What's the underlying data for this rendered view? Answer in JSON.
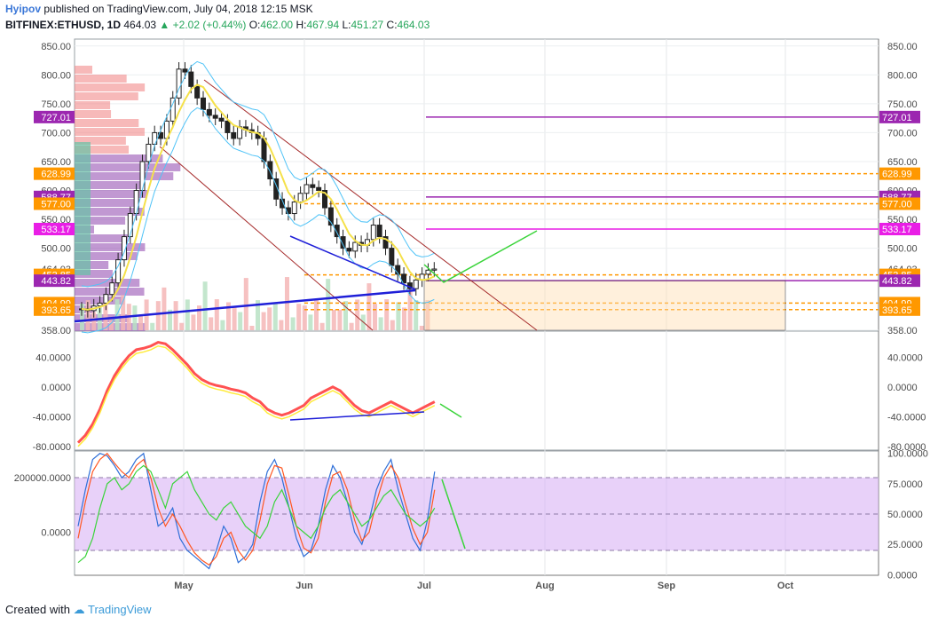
{
  "header": {
    "author": "Hyipov",
    "published": "published on TradingView.com, July 04, 2018 12:15 MSK",
    "symbol": "BITFINEX:ETHUSD, 1D",
    "last": "464.03",
    "change": "+2.02 (+0.44%)",
    "o_label": "O:",
    "o": "462.00",
    "h_label": "H:",
    "h": "467.94",
    "l_label": "L:",
    "l": "451.27",
    "c_label": "C:",
    "c": "464.03"
  },
  "footer": {
    "created_with": "Created with",
    "brand": "TradingView"
  },
  "colors": {
    "up": "#26a65b",
    "orange": "#ff9800",
    "purple": "#9c27b0",
    "magenta": "#e91ee6",
    "navy": "#1f1fd8",
    "darkred": "#a52a2a"
  },
  "chart_data": [
    {
      "type": "line",
      "title": "BITFINEX:ETHUSD, 1D",
      "ylim": [
        358,
        862
      ],
      "y_ticks": [
        "850.00",
        "800.00",
        "750.00",
        "700.00",
        "650.00",
        "600.00",
        "550.00",
        "500.00",
        "464.03",
        "443.82",
        "404.99",
        "393.65",
        "358.00"
      ],
      "x_ticks": [
        "May",
        "Jun",
        "Jul",
        "Aug",
        "Sep",
        "Oct"
      ],
      "price_labels": [
        {
          "value": 727.01,
          "text": "727.01",
          "color": "#9c27b0"
        },
        {
          "value": 628.99,
          "text": "628.99",
          "color": "#ff9800"
        },
        {
          "value": 588.77,
          "text": "588.77",
          "color": "#9c27b0"
        },
        {
          "value": 577.0,
          "text": "577.00",
          "color": "#ff9800"
        },
        {
          "value": 533.17,
          "text": "533.17",
          "color": "#e91ee6"
        },
        {
          "value": 453.85,
          "text": "453.85",
          "color": "#ff9800"
        },
        {
          "value": 443.82,
          "text": "443.82",
          "color": "#9c27b0"
        },
        {
          "value": 404.99,
          "text": "404.99",
          "color": "#ff9800"
        },
        {
          "value": 393.65,
          "text": "393.65",
          "color": "#ff9800"
        }
      ],
      "series": [
        {
          "values": [
            395,
            392,
            400,
            405,
            420,
            440,
            480,
            520,
            560,
            600,
            650,
            680,
            700,
            690,
            720,
            760,
            810,
            805,
            780,
            760,
            740,
            730,
            725,
            720,
            700,
            690,
            710,
            705,
            700,
            690,
            650,
            620,
            585,
            570,
            560,
            580,
            595,
            610,
            605,
            600,
            570,
            540,
            520,
            500,
            495,
            510,
            505,
            515,
            540,
            520,
            500,
            470,
            455,
            440,
            430,
            445,
            455,
            462,
            464
          ]
        }
      ]
    },
    {
      "type": "line",
      "ylim": [
        -85,
        75
      ],
      "y_ticks": [
        "40.0000",
        "0.0000",
        "-40.0000",
        "-80.0000"
      ],
      "series": [
        {
          "values": [
            -75,
            -65,
            -50,
            -30,
            -5,
            15,
            30,
            42,
            50,
            52,
            55,
            60,
            58,
            50,
            40,
            30,
            18,
            10,
            5,
            2,
            0,
            -3,
            -5,
            -8,
            -15,
            -20,
            -30,
            -35,
            -38,
            -35,
            -30,
            -25,
            -15,
            -10,
            -5,
            0,
            -5,
            -15,
            -25,
            -32,
            -35,
            -30,
            -25,
            -20,
            -25,
            -30,
            -35,
            -30,
            -25,
            -20
          ]
        }
      ]
    },
    {
      "type": "line",
      "ylim": [
        -0.5,
        102
      ],
      "y_ticks": [
        "100.0000",
        "75.0000",
        "50.0000",
        "25.0000",
        "0.0000"
      ],
      "left_ticks": [
        "200000.0000",
        "0.0000"
      ],
      "series": [
        {
          "values": [
            40,
            70,
            95,
            100,
            98,
            90,
            80,
            85,
            95,
            100,
            70,
            40,
            45,
            55,
            30,
            20,
            15,
            10,
            5,
            20,
            40,
            30,
            10,
            15,
            25,
            60,
            85,
            95,
            80,
            55,
            30,
            15,
            20,
            40,
            70,
            90,
            80,
            60,
            35,
            25,
            45,
            70,
            85,
            95,
            70,
            50,
            30,
            20,
            45,
            85
          ]
        },
        {
          "values": [
            30,
            60,
            85,
            95,
            100,
            92,
            85,
            80,
            90,
            95,
            80,
            55,
            40,
            50,
            40,
            28,
            18,
            12,
            8,
            15,
            30,
            35,
            20,
            12,
            20,
            45,
            75,
            90,
            88,
            65,
            40,
            22,
            18,
            30,
            60,
            82,
            85,
            70,
            45,
            28,
            35,
            60,
            80,
            90,
            80,
            58,
            38,
            25,
            35,
            70
          ]
        },
        {
          "values": [
            10,
            15,
            30,
            55,
            75,
            80,
            70,
            75,
            85,
            90,
            85,
            70,
            55,
            75,
            80,
            85,
            70,
            60,
            50,
            45,
            55,
            60,
            50,
            40,
            35,
            30,
            40,
            60,
            70,
            55,
            40,
            35,
            30,
            40,
            55,
            65,
            70,
            60,
            50,
            40,
            45,
            55,
            65,
            70,
            60,
            50,
            45,
            40,
            45,
            55
          ]
        }
      ]
    }
  ]
}
